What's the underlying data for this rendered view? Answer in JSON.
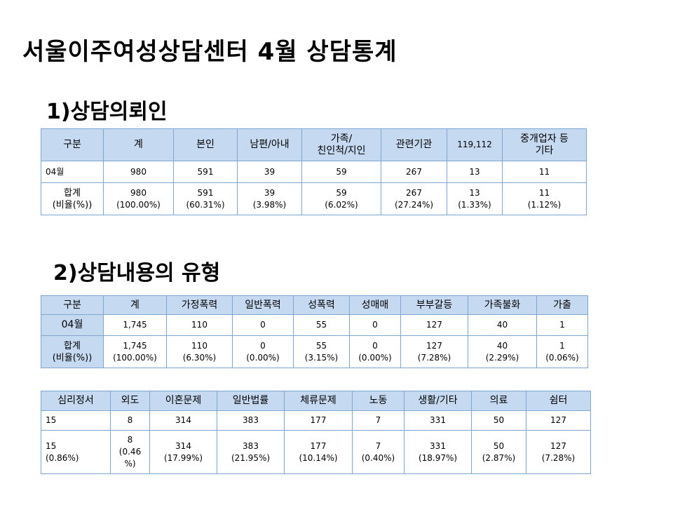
{
  "title": "서울이주여성상담센터 4월 상담통계",
  "section1": {
    "heading": "1)상담의뢰인",
    "headers": [
      "구분",
      "계",
      "본인",
      "남편/아내",
      "가족/\n친인척/지인",
      "관련기관",
      "119,112",
      "중개업자 등\n기타"
    ],
    "rows": [
      [
        "04월",
        "980",
        "591",
        "39",
        "59",
        "267",
        "13",
        "11"
      ],
      [
        "합계\n(비율(%))",
        "980\n(100.00%)",
        "591\n(60.31%)",
        "39\n(3.98%)",
        "59\n(6.02%)",
        "267\n(27.24%)",
        "13\n(1.33%)",
        "11\n(1.12%)"
      ]
    ]
  },
  "section2": {
    "heading": "2)상담내용의 유형",
    "headers": [
      "구분",
      "계",
      "가정폭력",
      "일반폭력",
      "성폭력",
      "성매매",
      "부부갈등",
      "가족불화",
      "가출"
    ],
    "rows": [
      [
        "04월",
        "1,745",
        "110",
        "0",
        "55",
        "0",
        "127",
        "40",
        "1"
      ],
      [
        "합계\n(비율(%))",
        "1,745\n(100.00%)",
        "110\n(6.30%)",
        "0\n(0.00%)",
        "55\n(3.15%)",
        "0\n(0.00%)",
        "127\n(7.28%)",
        "40\n(2.29%)",
        "1\n(0.06%)"
      ]
    ]
  },
  "section3": {
    "headers": [
      "심리정서",
      "외도",
      "이혼문제",
      "일반법률",
      "체류문제",
      "노동",
      "생활/기타",
      "의료",
      "쉼터"
    ],
    "rows": [
      [
        "15",
        "8",
        "314",
        "383",
        "177",
        "7",
        "331",
        "50",
        "127"
      ],
      [
        "15\n(0.86%)",
        "8\n(0.46\n%)",
        "314\n(17.99%)",
        "383\n(21.95%)",
        "177\n(10.14%)",
        "7\n(0.40%)",
        "331\n(18.97%)",
        "50\n(2.87%)",
        "127\n(7.28%)"
      ]
    ]
  },
  "colors": {
    "header_bg": "#c5d9f1",
    "border": "#7ea6d0"
  }
}
